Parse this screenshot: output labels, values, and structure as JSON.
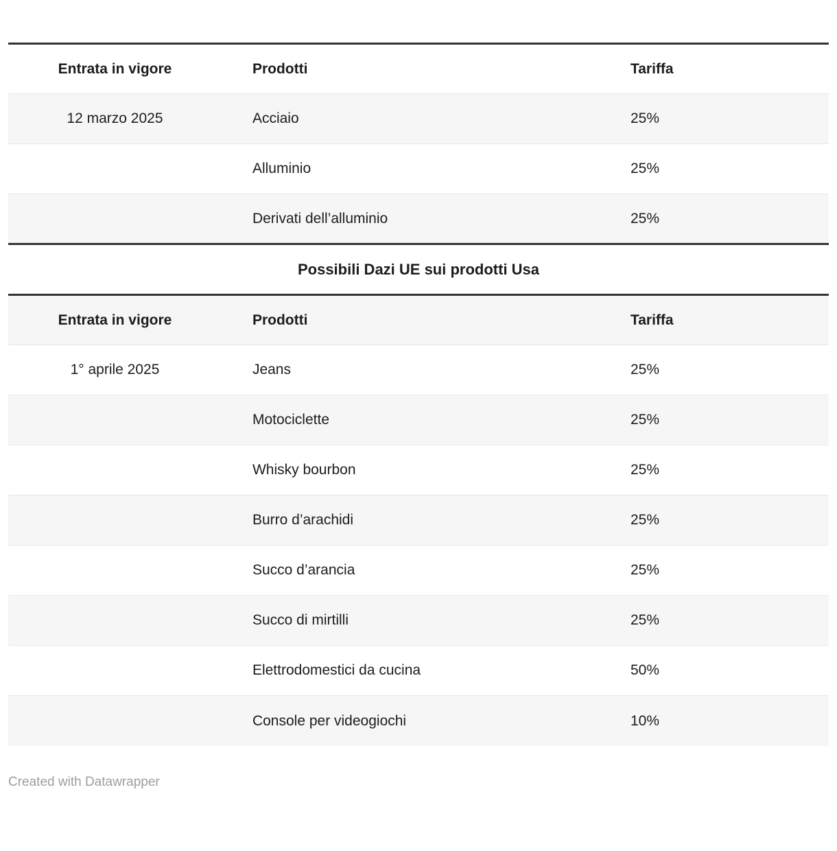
{
  "tables": {
    "us_tariffs": {
      "headers": [
        "Entrata in vigore",
        "Prodotti",
        "Tariffa"
      ],
      "rows": [
        {
          "effective_date": "12 marzo 2025",
          "product": "Acciaio",
          "tariff": "25%"
        },
        {
          "effective_date": "",
          "product": "Alluminio",
          "tariff": "25%"
        },
        {
          "effective_date": "",
          "product": "Derivati dell’alluminio",
          "tariff": "25%"
        }
      ]
    },
    "eu_tariffs": {
      "section_title": "Possibili Dazi UE sui prodotti Usa",
      "headers": [
        "Entrata in vigore",
        "Prodotti",
        "Tariffa"
      ],
      "rows": [
        {
          "effective_date": "1° aprile 2025",
          "product": "Jeans",
          "tariff": "25%"
        },
        {
          "effective_date": "",
          "product": "Motociclette",
          "tariff": "25%"
        },
        {
          "effective_date": "",
          "product": "Whisky bourbon",
          "tariff": "25%"
        },
        {
          "effective_date": "",
          "product": "Burro d’arachidi",
          "tariff": "25%"
        },
        {
          "effective_date": "",
          "product": "Succo d’arancia",
          "tariff": "25%"
        },
        {
          "effective_date": "",
          "product": "Succo di mirtilli",
          "tariff": "25%"
        },
        {
          "effective_date": "",
          "product": "Elettrodomestici da cucina",
          "tariff": "50%"
        },
        {
          "effective_date": "",
          "product": "Console per videogiochi",
          "tariff": "10%"
        }
      ]
    }
  },
  "footer": {
    "credit": "Created with Datawrapper"
  },
  "colors": {
    "text": "#1c1c1c",
    "heavy_rule": "#333333",
    "hairline": "#e8e8e8",
    "row_shade": "#f6f6f6",
    "footer_text": "#9e9e9e",
    "background": "#ffffff"
  },
  "chart_data": [
    {
      "type": "table",
      "title": "",
      "columns": [
        "Entrata in vigore",
        "Prodotti",
        "Tariffa"
      ],
      "rows": [
        [
          "12 marzo 2025",
          "Acciaio",
          "25%"
        ],
        [
          "",
          "Alluminio",
          "25%"
        ],
        [
          "",
          "Derivati dell’alluminio",
          "25%"
        ]
      ]
    },
    {
      "type": "table",
      "title": "Possibili Dazi UE sui prodotti Usa",
      "columns": [
        "Entrata in vigore",
        "Prodotti",
        "Tariffa"
      ],
      "rows": [
        [
          "1° aprile 2025",
          "Jeans",
          "25%"
        ],
        [
          "",
          "Motociclette",
          "25%"
        ],
        [
          "",
          "Whisky bourbon",
          "25%"
        ],
        [
          "",
          "Burro d’arachidi",
          "25%"
        ],
        [
          "",
          "Succo d’arancia",
          "25%"
        ],
        [
          "",
          "Succo di mirtilli",
          "25%"
        ],
        [
          "",
          "Elettrodomestici da cucina",
          "50%"
        ],
        [
          "",
          "Console per videogiochi",
          "10%"
        ]
      ]
    }
  ]
}
